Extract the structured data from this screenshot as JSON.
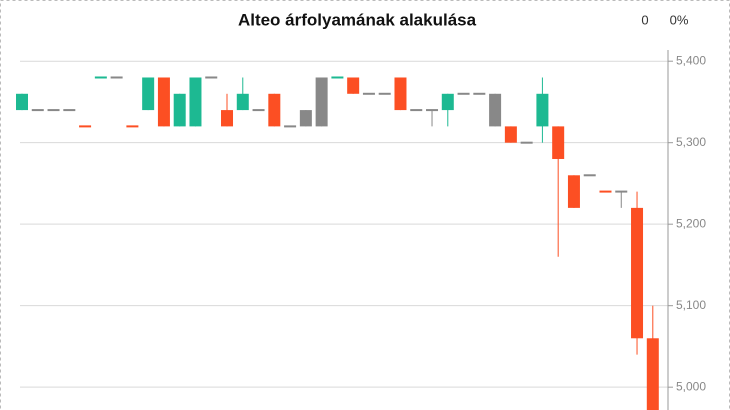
{
  "header": {
    "count": "0",
    "percent": "0%"
  },
  "chart_data": {
    "type": "candlestick",
    "title": "Alteo árfolyamának alakulása",
    "ylim": [
      4972,
      5426
    ],
    "yticks": [
      {
        "value": 5000,
        "label": "5,000"
      },
      {
        "value": 5100,
        "label": "5,100"
      },
      {
        "value": 5200,
        "label": "5,200"
      },
      {
        "value": 5300,
        "label": "5,300"
      },
      {
        "value": 5400,
        "label": "5,400"
      }
    ],
    "grid": true,
    "open": [
      5340,
      5340,
      5340,
      5340,
      5320,
      5380,
      5380,
      5320,
      5340,
      5380,
      5320,
      5320,
      5380,
      5340,
      5340,
      5340,
      5360,
      5320,
      5320,
      5320,
      5380,
      5380,
      5360,
      5360,
      5380,
      5340,
      5340,
      5340,
      5360,
      5360,
      5360,
      5320,
      5300,
      5320,
      5320,
      5260,
      5260,
      5240,
      5240,
      5220,
      5060
    ],
    "high": [
      5360,
      5340,
      5340,
      5340,
      5320,
      5380,
      5380,
      5320,
      5380,
      5380,
      5360,
      5380,
      5380,
      5360,
      5380,
      5340,
      5360,
      5320,
      5340,
      5380,
      5380,
      5380,
      5360,
      5360,
      5380,
      5340,
      5340,
      5360,
      5360,
      5360,
      5360,
      5320,
      5300,
      5380,
      5320,
      5260,
      5260,
      5240,
      5240,
      5240,
      5100
    ],
    "low": [
      5340,
      5340,
      5340,
      5340,
      5320,
      5380,
      5380,
      5320,
      5340,
      5320,
      5320,
      5320,
      5380,
      5320,
      5340,
      5340,
      5320,
      5320,
      5320,
      5320,
      5380,
      5360,
      5360,
      5360,
      5340,
      5340,
      5320,
      5320,
      5360,
      5360,
      5320,
      5300,
      5300,
      5300,
      5160,
      5220,
      5260,
      5240,
      5220,
      5040,
      4972
    ],
    "close": [
      5360,
      5340,
      5340,
      5340,
      5320,
      5380,
      5380,
      5320,
      5380,
      5320,
      5360,
      5380,
      5380,
      5320,
      5360,
      5340,
      5320,
      5320,
      5340,
      5380,
      5380,
      5360,
      5360,
      5360,
      5340,
      5340,
      5340,
      5360,
      5360,
      5360,
      5320,
      5300,
      5300,
      5360,
      5280,
      5220,
      5260,
      5240,
      5240,
      5060,
      4972
    ],
    "colors": [
      "#1db992",
      "#888888",
      "#888888",
      "#888888",
      "#fc4f23",
      "#1db992",
      "#888888",
      "#fc4f23",
      "#1db992",
      "#fc4f23",
      "#1db992",
      "#1db992",
      "#888888",
      "#fc4f23",
      "#1db992",
      "#888888",
      "#fc4f23",
      "#888888",
      "#888888",
      "#888888",
      "#1db992",
      "#fc4f23",
      "#888888",
      "#888888",
      "#fc4f23",
      "#888888",
      "#888888",
      "#1db992",
      "#888888",
      "#888888",
      "#888888",
      "#fc4f23",
      "#888888",
      "#1db992",
      "#fc4f23",
      "#fc4f23",
      "#888888",
      "#fc4f23",
      "#888888",
      "#fc4f23",
      "#fc4f23"
    ]
  }
}
